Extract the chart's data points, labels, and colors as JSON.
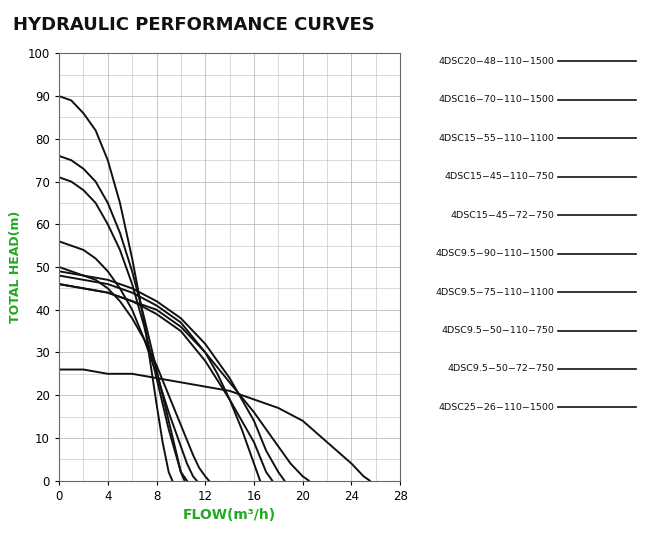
{
  "title": "HYDRAULIC PERFORMANCE CURVES",
  "xlabel": "FLOW(m³/h)",
  "ylabel": "TOTAL HEAD(m)",
  "xlim": [
    0,
    28
  ],
  "ylim": [
    0,
    100
  ],
  "xticks": [
    0,
    4,
    8,
    12,
    16,
    20,
    24,
    28
  ],
  "yticks": [
    0,
    10,
    20,
    30,
    40,
    50,
    60,
    70,
    80,
    90,
    100
  ],
  "bg_color": "#ffffff",
  "grid_color": "#bbbbbb",
  "curve_color": "#111111",
  "title_color": "#111111",
  "label_color": "#22aa22",
  "curves": [
    {
      "label": "4DSC20−48−110−1500",
      "x": [
        0,
        1,
        2,
        3,
        4,
        5,
        6,
        7,
        8,
        8.5,
        9,
        9.3
      ],
      "y": [
        90,
        89,
        86,
        82,
        75,
        65,
        52,
        37,
        18,
        9,
        2,
        0
      ]
    },
    {
      "label": "4DSC16−70−110−1500",
      "x": [
        0,
        1,
        2,
        3,
        4,
        5,
        6,
        7,
        8,
        9,
        9.5,
        10,
        10.3
      ],
      "y": [
        76,
        75,
        73,
        70,
        65,
        58,
        49,
        38,
        26,
        14,
        8,
        2,
        0
      ]
    },
    {
      "label": "4DSC15−55−110−1100",
      "x": [
        0,
        1,
        2,
        3,
        4,
        5,
        6,
        7,
        8,
        9,
        9.5,
        10,
        10.5
      ],
      "y": [
        71,
        70,
        68,
        65,
        60,
        54,
        46,
        36,
        24,
        12,
        7,
        2,
        0
      ]
    },
    {
      "label": "4DSC15−45−110−750",
      "x": [
        0,
        1,
        2,
        3,
        4,
        5,
        6,
        7,
        8,
        9,
        10,
        10.5,
        11,
        11.3
      ],
      "y": [
        56,
        55,
        54,
        52,
        49,
        45,
        40,
        33,
        25,
        16,
        8,
        4,
        1,
        0
      ]
    },
    {
      "label": "4DSC15−45−72−750",
      "x": [
        0,
        1,
        2,
        3,
        4,
        5,
        6,
        7,
        8,
        9,
        10,
        11,
        11.5,
        12,
        12.3
      ],
      "y": [
        50,
        49,
        48,
        47,
        45,
        42,
        38,
        33,
        27,
        20,
        13,
        6,
        3,
        1,
        0
      ]
    },
    {
      "label": "4DSC9.5−90−110−1500",
      "x": [
        0,
        2,
        4,
        6,
        8,
        10,
        12,
        13,
        14,
        15,
        16,
        16.5
      ],
      "y": [
        48,
        47,
        46,
        44,
        41,
        37,
        30,
        25,
        19,
        12,
        4,
        0
      ]
    },
    {
      "label": "4DSC9.5−75−110−1100",
      "x": [
        0,
        2,
        4,
        6,
        8,
        10,
        12,
        14,
        15,
        16,
        17,
        17.5
      ],
      "y": [
        46,
        45,
        44,
        42,
        39,
        35,
        28,
        19,
        14,
        9,
        2,
        0
      ]
    },
    {
      "label": "4DSC9.5−50−110−750",
      "x": [
        0,
        2,
        4,
        6,
        8,
        10,
        12,
        14,
        15,
        16,
        17,
        18,
        18.5
      ],
      "y": [
        49,
        48,
        47,
        45,
        42,
        38,
        32,
        24,
        19,
        14,
        7,
        2,
        0
      ]
    },
    {
      "label": "4DSC9.5−50−72−750",
      "x": [
        0,
        2,
        4,
        6,
        8,
        10,
        12,
        14,
        16,
        18,
        19,
        20,
        20.5
      ],
      "y": [
        46,
        45,
        44,
        42,
        40,
        36,
        30,
        23,
        16,
        8,
        4,
        1,
        0
      ]
    },
    {
      "label": "4DSC25−26−110−1500",
      "x": [
        0,
        2,
        4,
        6,
        8,
        10,
        12,
        14,
        16,
        18,
        20,
        22,
        24,
        25,
        25.5
      ],
      "y": [
        26,
        26,
        25,
        25,
        24,
        23,
        22,
        21,
        19,
        17,
        14,
        9,
        4,
        1,
        0
      ]
    }
  ]
}
